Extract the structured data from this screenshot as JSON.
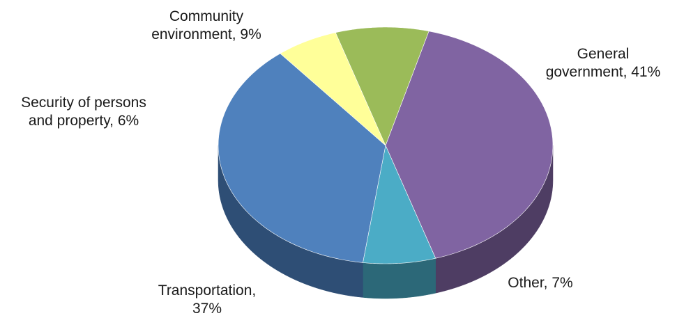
{
  "chart_data": {
    "type": "pie",
    "style": "3d",
    "title": "",
    "slices": [
      {
        "name": "General government",
        "value": 41,
        "label_lines": [
          "General",
          "government,  41%"
        ],
        "color": "#8064A2",
        "side_color": "#4E3D63"
      },
      {
        "name": "Other",
        "value": 7,
        "label_lines": [
          "Other,  7%"
        ],
        "color": "#4BACC6",
        "side_color": "#2C6878"
      },
      {
        "name": "Transportation",
        "value": 37,
        "label_lines": [
          "Transportation,",
          "37%"
        ],
        "color": "#4F81BD",
        "side_color": "#2E4E75"
      },
      {
        "name": "Security of persons and property",
        "value": 6,
        "label_lines": [
          "Security of persons",
          "and property,  6%"
        ],
        "color": "#FFFF99",
        "side_color": "#A8A860"
      },
      {
        "name": "Community environment",
        "value": 9,
        "label_lines": [
          "Community",
          "environment,  9%"
        ],
        "color": "#9BBB59",
        "side_color": "#5F7436"
      }
    ]
  }
}
